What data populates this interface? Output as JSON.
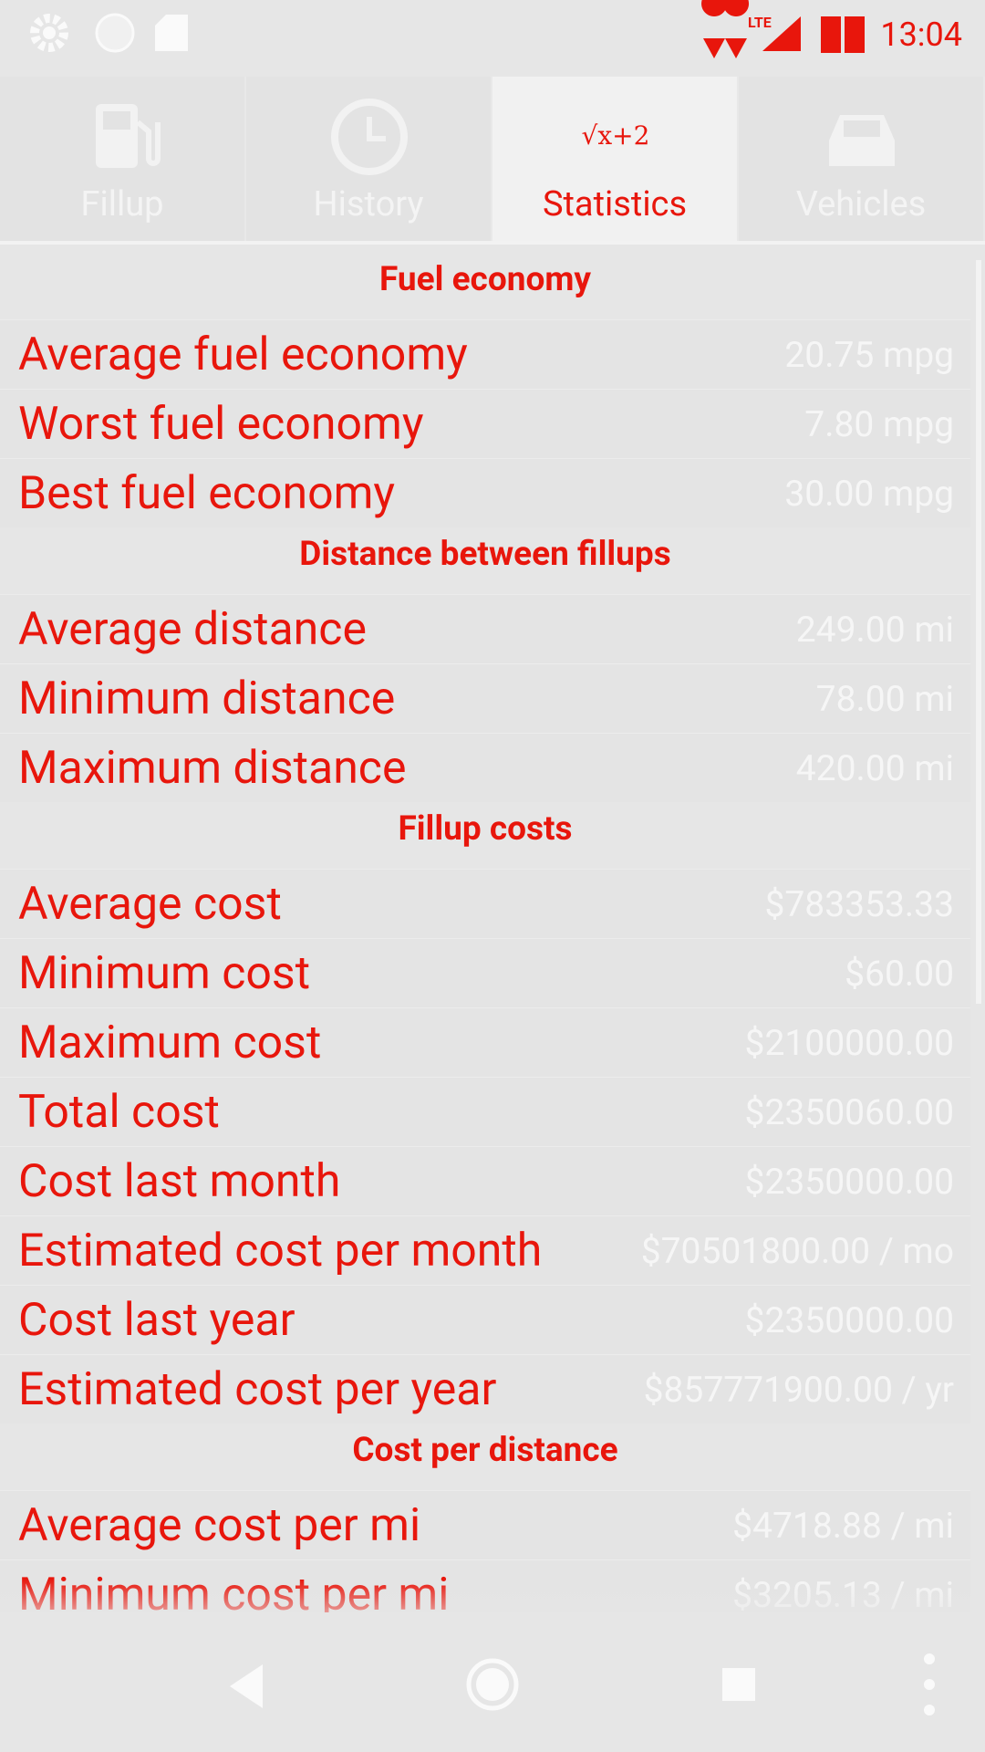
{
  "status_bar": {
    "time": "13:04",
    "network": "LTE"
  },
  "tabs": [
    {
      "label": "Fillup"
    },
    {
      "label": "History"
    },
    {
      "label": "Statistics",
      "icon_text": "√x+2"
    },
    {
      "label": "Vehicles"
    }
  ],
  "sections": [
    {
      "title": "Fuel economy",
      "rows": [
        {
          "label": "Average fuel economy",
          "value": "20.75 mpg"
        },
        {
          "label": "Worst fuel economy",
          "value": "7.80 mpg"
        },
        {
          "label": "Best fuel economy",
          "value": "30.00 mpg"
        }
      ]
    },
    {
      "title": "Distance between fillups",
      "rows": [
        {
          "label": "Average distance",
          "value": "249.00 mi"
        },
        {
          "label": "Minimum distance",
          "value": "78.00 mi"
        },
        {
          "label": "Maximum distance",
          "value": "420.00 mi"
        }
      ]
    },
    {
      "title": "Fillup costs",
      "rows": [
        {
          "label": "Average cost",
          "value": "$783353.33"
        },
        {
          "label": "Minimum cost",
          "value": "$60.00"
        },
        {
          "label": "Maximum cost",
          "value": "$2100000.00"
        },
        {
          "label": "Total cost",
          "value": "$2350060.00"
        },
        {
          "label": "Cost last month",
          "value": "$2350000.00"
        },
        {
          "label": "Estimated cost per month",
          "value": "$70501800.00 / mo"
        },
        {
          "label": "Cost last year",
          "value": "$2350000.00"
        },
        {
          "label": "Estimated cost per year",
          "value": "$857771900.00 / yr"
        }
      ]
    },
    {
      "title": "Cost per distance",
      "rows": [
        {
          "label": "Average cost per mi",
          "value": "$4718.88 / mi"
        },
        {
          "label": "Minimum cost per mi",
          "value": "$3205.13 / mi"
        }
      ]
    }
  ]
}
